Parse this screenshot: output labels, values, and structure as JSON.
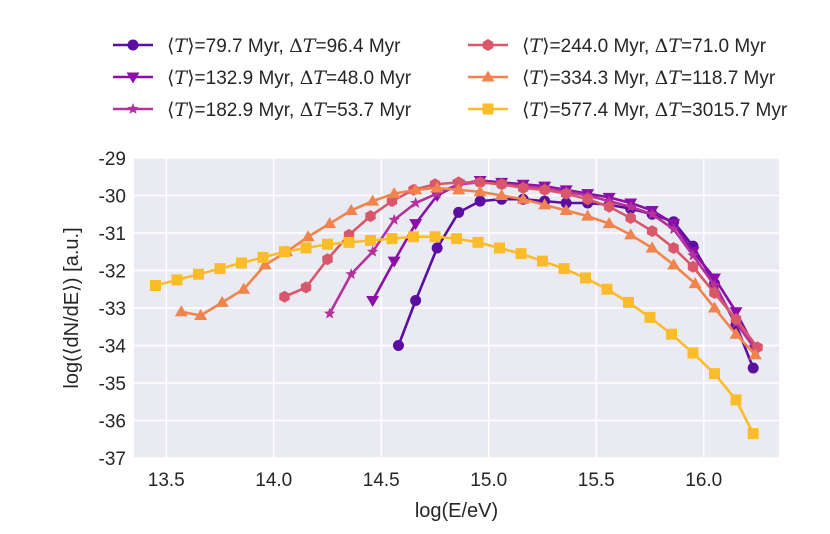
{
  "chart_data": {
    "type": "line",
    "xlabel": "log(E/eV)",
    "ylabel": "log(⟨dN/dE⟩) [a.u.]",
    "xlim": [
      13.35,
      16.35
    ],
    "ylim": [
      -37,
      -29
    ],
    "xticks": [
      13.5,
      14.0,
      14.5,
      15.0,
      15.5,
      16.0
    ],
    "xtick_labels": [
      "13.5",
      "14.0",
      "14.5",
      "15.0",
      "15.5",
      "16.0"
    ],
    "yticks": [
      -29,
      -30,
      -31,
      -32,
      -33,
      -34,
      -35,
      -36,
      -37
    ],
    "ytick_labels": [
      "-29",
      "-30",
      "-31",
      "-32",
      "-33",
      "-34",
      "-35",
      "-36",
      "-37"
    ],
    "grid": true,
    "legend_position": "top",
    "series": [
      {
        "name": "⟨T⟩=79.7 Myr, ΔT=96.4 Myr",
        "label_pre": "=79.7 Myr, ",
        "label_post": "=96.4 Myr",
        "color": "#5a0fa0",
        "marker": "circle",
        "x": [
          14.58,
          14.66,
          14.76,
          14.86,
          14.96,
          15.06,
          15.16,
          15.26,
          15.36,
          15.46,
          15.56,
          15.66,
          15.76,
          15.86,
          15.95,
          16.05,
          16.15,
          16.23
        ],
        "y": [
          -34.0,
          -32.8,
          -31.4,
          -30.45,
          -30.15,
          -30.1,
          -30.1,
          -30.15,
          -30.2,
          -30.2,
          -30.25,
          -30.35,
          -30.5,
          -30.7,
          -31.35,
          -32.35,
          -33.45,
          -34.6
        ]
      },
      {
        "name": "⟨T⟩=132.9 Myr, ΔT=48.0 Myr",
        "label_pre": "=132.9 Myr, ",
        "label_post": "=48.0 Myr",
        "color": "#8b0fa8",
        "marker": "triangle-down",
        "x": [
          14.46,
          14.56,
          14.66,
          14.76,
          14.86,
          14.96,
          15.06,
          15.16,
          15.26,
          15.36,
          15.46,
          15.56,
          15.66,
          15.76,
          15.86,
          15.95,
          16.05,
          16.15,
          16.24
        ],
        "y": [
          -32.8,
          -31.75,
          -30.75,
          -30.0,
          -29.7,
          -29.6,
          -29.65,
          -29.7,
          -29.75,
          -29.85,
          -29.95,
          -30.05,
          -30.2,
          -30.4,
          -30.75,
          -31.5,
          -32.2,
          -33.1,
          -34.1
        ]
      },
      {
        "name": "⟨T⟩=182.9 Myr, ΔT=53.7 Myr",
        "label_pre": "=182.9 Myr, ",
        "label_post": "=53.7 Myr",
        "color": "#b5329c",
        "marker": "star",
        "x": [
          14.26,
          14.36,
          14.46,
          14.56,
          14.66,
          14.76,
          14.86,
          14.96,
          15.06,
          15.16,
          15.26,
          15.36,
          15.46,
          15.56,
          15.66,
          15.76,
          15.86,
          15.95,
          16.05,
          16.15,
          16.24
        ],
        "y": [
          -33.15,
          -32.1,
          -31.5,
          -30.65,
          -30.2,
          -29.95,
          -29.7,
          -29.65,
          -29.7,
          -29.75,
          -29.8,
          -29.9,
          -30.0,
          -30.15,
          -30.3,
          -30.5,
          -30.9,
          -31.6,
          -32.4,
          -33.4,
          -34.1
        ]
      },
      {
        "name": "⟨T⟩=244.0 Myr, ΔT=71.0 Myr",
        "label_pre": "=244.0 Myr, ",
        "label_post": "=71.0 Myr",
        "color": "#d9576b",
        "marker": "hexagon",
        "x": [
          14.05,
          14.15,
          14.25,
          14.35,
          14.45,
          14.55,
          14.65,
          14.75,
          14.86,
          14.96,
          15.06,
          15.16,
          15.26,
          15.36,
          15.46,
          15.56,
          15.66,
          15.76,
          15.86,
          15.95,
          16.05,
          16.15,
          16.25
        ],
        "y": [
          -32.7,
          -32.45,
          -31.7,
          -31.05,
          -30.55,
          -30.15,
          -29.85,
          -29.7,
          -29.65,
          -29.65,
          -29.7,
          -29.8,
          -29.85,
          -29.95,
          -30.1,
          -30.3,
          -30.6,
          -30.95,
          -31.4,
          -31.9,
          -32.6,
          -33.3,
          -34.05
        ]
      },
      {
        "name": "⟨T⟩=334.3 Myr, ΔT=118.7 Myr",
        "label_pre": "=334.3 Myr, ",
        "label_post": "=118.7 Myr",
        "color": "#f0844c",
        "marker": "triangle-up",
        "x": [
          13.57,
          13.66,
          13.76,
          13.86,
          13.96,
          14.06,
          14.16,
          14.26,
          14.36,
          14.46,
          14.56,
          14.66,
          14.76,
          14.86,
          14.96,
          15.06,
          15.16,
          15.26,
          15.36,
          15.46,
          15.56,
          15.66,
          15.76,
          15.86,
          15.96,
          16.05,
          16.15,
          16.24
        ],
        "y": [
          -33.1,
          -33.2,
          -32.85,
          -32.5,
          -31.85,
          -31.5,
          -31.1,
          -30.75,
          -30.4,
          -30.15,
          -29.95,
          -29.85,
          -29.8,
          -29.85,
          -29.9,
          -30.0,
          -30.1,
          -30.25,
          -30.4,
          -30.55,
          -30.75,
          -31.05,
          -31.4,
          -31.85,
          -32.35,
          -33.0,
          -33.7,
          -34.25
        ]
      },
      {
        "name": "⟨T⟩=577.4 Myr, ΔT=3015.7 Myr",
        "label_pre": "=577.4 Myr, ",
        "label_post": "=3015.7 Myr",
        "color": "#fbbc2a",
        "marker": "square",
        "x": [
          13.45,
          13.55,
          13.65,
          13.75,
          13.85,
          13.95,
          14.05,
          14.15,
          14.25,
          14.35,
          14.45,
          14.55,
          14.65,
          14.75,
          14.85,
          14.95,
          15.05,
          15.15,
          15.25,
          15.35,
          15.45,
          15.55,
          15.65,
          15.75,
          15.85,
          15.95,
          16.05,
          16.15,
          16.23
        ],
        "y": [
          -32.4,
          -32.25,
          -32.1,
          -31.95,
          -31.8,
          -31.65,
          -31.5,
          -31.4,
          -31.3,
          -31.25,
          -31.2,
          -31.15,
          -31.1,
          -31.1,
          -31.15,
          -31.25,
          -31.4,
          -31.55,
          -31.75,
          -31.95,
          -32.2,
          -32.5,
          -32.85,
          -33.25,
          -33.7,
          -34.2,
          -34.75,
          -35.45,
          -36.35
        ]
      }
    ]
  }
}
